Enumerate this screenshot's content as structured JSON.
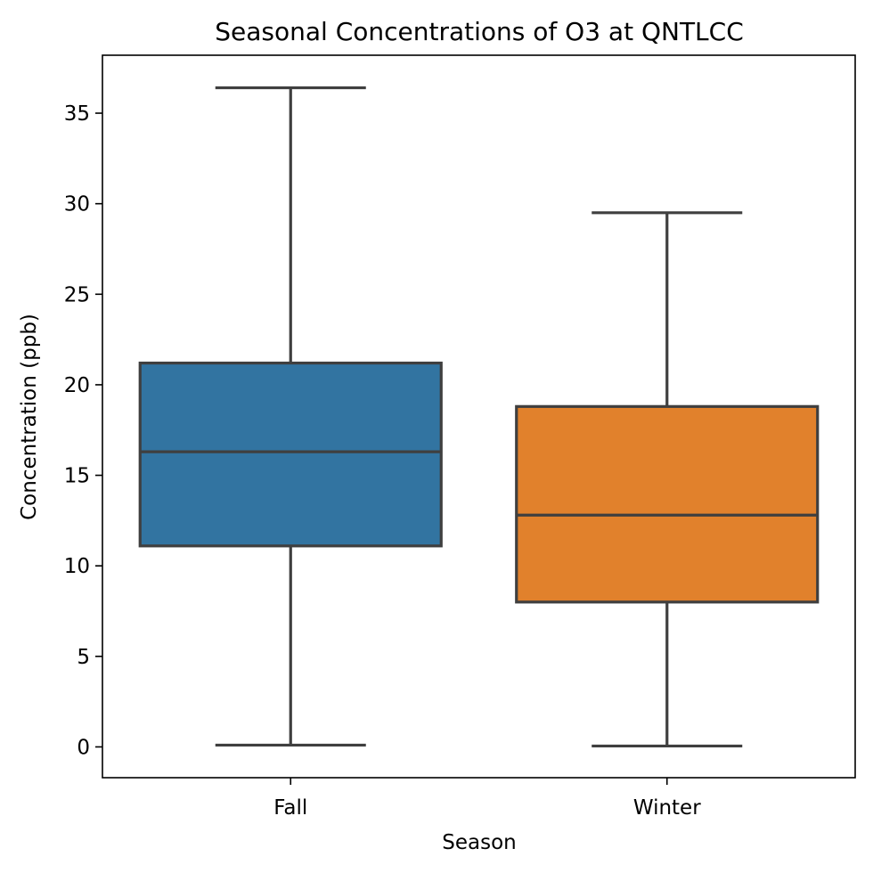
{
  "chart_data": {
    "type": "boxplot",
    "title": "Seasonal Concentrations of O3 at QNTLCC",
    "xlabel": "Season",
    "ylabel": "Concentration (ppb)",
    "ylim": [
      -1.7,
      38.2
    ],
    "yticks": [
      0,
      5,
      10,
      15,
      20,
      25,
      30,
      35
    ],
    "categories": [
      "Fall",
      "Winter"
    ],
    "boxes": [
      {
        "name": "Fall",
        "min": 0.1,
        "q1": 11.1,
        "median": 16.3,
        "q3": 21.2,
        "max": 36.4,
        "color": "#3274a1"
      },
      {
        "name": "Winter",
        "min": 0.05,
        "q1": 8.0,
        "median": 12.8,
        "q3": 18.8,
        "max": 29.5,
        "color": "#e1812c"
      }
    ],
    "line_color": "#3f3f3f",
    "grid": false,
    "legend": "none"
  }
}
